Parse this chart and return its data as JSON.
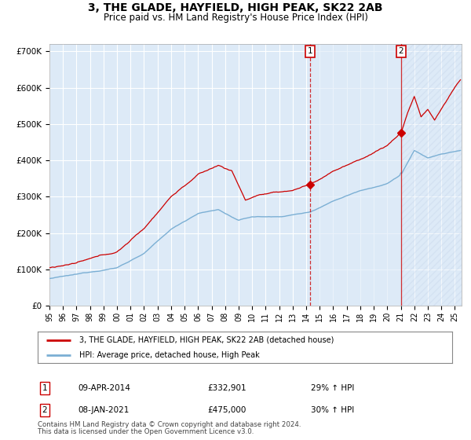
{
  "title": "3, THE GLADE, HAYFIELD, HIGH PEAK, SK22 2AB",
  "subtitle": "Price paid vs. HM Land Registry's House Price Index (HPI)",
  "title_fontsize": 10,
  "subtitle_fontsize": 8.5,
  "ylim": [
    0,
    720000
  ],
  "yticks": [
    0,
    100000,
    200000,
    300000,
    400000,
    500000,
    600000,
    700000
  ],
  "ytick_labels": [
    "£0",
    "£100K",
    "£200K",
    "£300K",
    "£400K",
    "£500K",
    "£600K",
    "£700K"
  ],
  "bg_color": "#ddeaf7",
  "fig_bg_color": "#ffffff",
  "grid_color": "#ffffff",
  "red_line_color": "#cc0000",
  "blue_line_color": "#7bafd4",
  "sale1_year": 2014.27,
  "sale1_price": 332901,
  "sale2_year": 2021.03,
  "sale2_price": 475000,
  "legend_line1": "3, THE GLADE, HAYFIELD, HIGH PEAK, SK22 2AB (detached house)",
  "legend_line2": "HPI: Average price, detached house, High Peak",
  "footer1": "Contains HM Land Registry data © Crown copyright and database right 2024.",
  "footer2": "This data is licensed under the Open Government Licence v3.0.",
  "x_start": 1995.0,
  "x_end": 2025.5,
  "xtick_years": [
    1995,
    1996,
    1997,
    1998,
    1999,
    2000,
    2001,
    2002,
    2003,
    2004,
    2005,
    2006,
    2007,
    2008,
    2009,
    2010,
    2011,
    2012,
    2013,
    2014,
    2015,
    2016,
    2017,
    2018,
    2019,
    2020,
    2021,
    2022,
    2023,
    2024,
    2025
  ],
  "sale1_label": "1",
  "sale1_date": "09-APR-2014",
  "sale1_amount": "£332,901",
  "sale1_hpi": "29% ↑ HPI",
  "sale2_label": "2",
  "sale2_date": "08-JAN-2021",
  "sale2_amount": "£475,000",
  "sale2_hpi": "30% ↑ HPI"
}
